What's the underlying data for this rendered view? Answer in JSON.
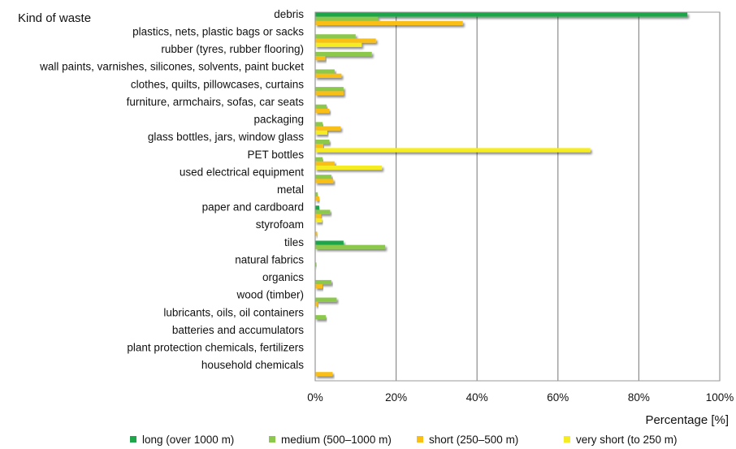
{
  "chart_data": {
    "type": "bar",
    "orientation": "horizontal",
    "title": "",
    "ylabel": "Kind of waste",
    "xlabel": "Percentage [%]",
    "xlim": [
      0,
      100
    ],
    "x_ticks": [
      "0%",
      "20%",
      "40%",
      "60%",
      "80%",
      "100%"
    ],
    "grid": "vertical",
    "legend_position": "bottom",
    "categories": [
      "debris",
      "plastics, nets, plastic bags or sacks",
      "rubber (tyres, rubber flooring)",
      "wall paints, varnishes, silicones, solvents, paint bucket",
      "clothes, quilts, pillowcases, curtains",
      "furniture, armchairs, sofas, car seats",
      "packaging",
      "glass bottles, jars, window glass",
      "PET bottles",
      "used electrical equipment",
      "metal",
      "paper and cardboard",
      "styrofoam",
      "tiles",
      "natural fabrics",
      "organics",
      "wood (timber)",
      "lubricants, oils, oil containers",
      "batteries and accumulators",
      "plant protection chemicals, fertilizers",
      "household chemicals"
    ],
    "series": [
      {
        "name": "long (over 1000 m)",
        "color": "#1fa64a",
        "values": [
          92,
          0,
          0,
          0,
          0,
          0,
          0,
          0,
          0,
          0,
          0,
          1,
          0,
          7,
          0,
          0,
          0,
          0,
          0,
          0,
          0
        ]
      },
      {
        "name": "medium  (500–1000 m)",
        "color": "#8cc84b",
        "values": [
          15.5,
          10,
          14,
          4.8,
          7,
          2.8,
          1.8,
          3.5,
          1.8,
          4,
          0.6,
          3.7,
          0,
          17.3,
          0.3,
          4,
          5.3,
          2.6,
          0,
          0,
          0
        ]
      },
      {
        "name": "short (250–500 m)",
        "color": "#f9bf14",
        "values": [
          36.5,
          15,
          2.5,
          6.5,
          7,
          3.5,
          6.3,
          2,
          4.8,
          4.5,
          1,
          1.5,
          0.5,
          0,
          0,
          1.8,
          0.7,
          0,
          0,
          0,
          4.3
        ]
      },
      {
        "name": "very short (to 250 m)",
        "color": "#f5ec24",
        "values": [
          0,
          11.5,
          0,
          0,
          0,
          0,
          3,
          68,
          16.5,
          0,
          0,
          1.7,
          0,
          0,
          0,
          0,
          0,
          0,
          0,
          0,
          0
        ]
      }
    ]
  }
}
